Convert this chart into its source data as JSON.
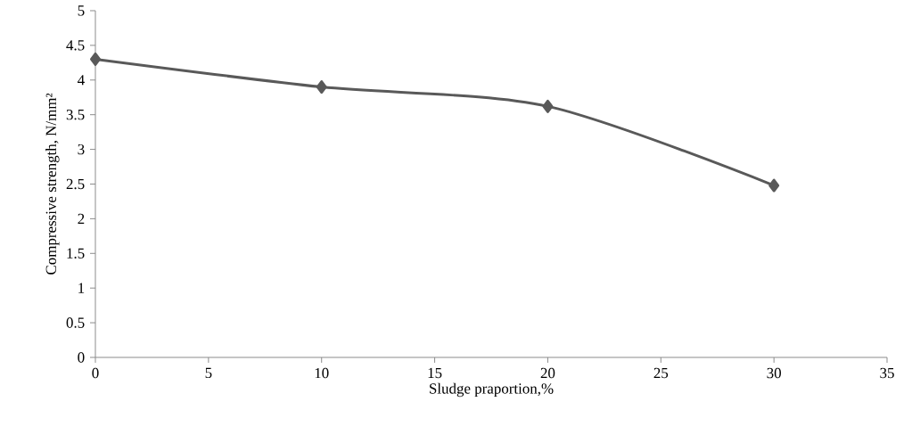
{
  "chart_data": {
    "type": "line",
    "xlabel": "Sludge praportion,%",
    "ylabel": "Compressive strength, N/mm²",
    "x": [
      0,
      10,
      20,
      30
    ],
    "series": [
      {
        "color": "#595959",
        "values": [
          4.3,
          3.9,
          3.62,
          2.48
        ]
      }
    ],
    "xlim": [
      0,
      35
    ],
    "xticks": [
      0,
      5,
      10,
      15,
      20,
      25,
      30,
      35
    ],
    "ylim": [
      0,
      5
    ],
    "yticks": [
      0,
      0.5,
      1,
      1.5,
      2,
      2.5,
      3,
      3.5,
      4,
      4.5,
      5
    ],
    "marker": "diamond",
    "line_style": "solid"
  }
}
